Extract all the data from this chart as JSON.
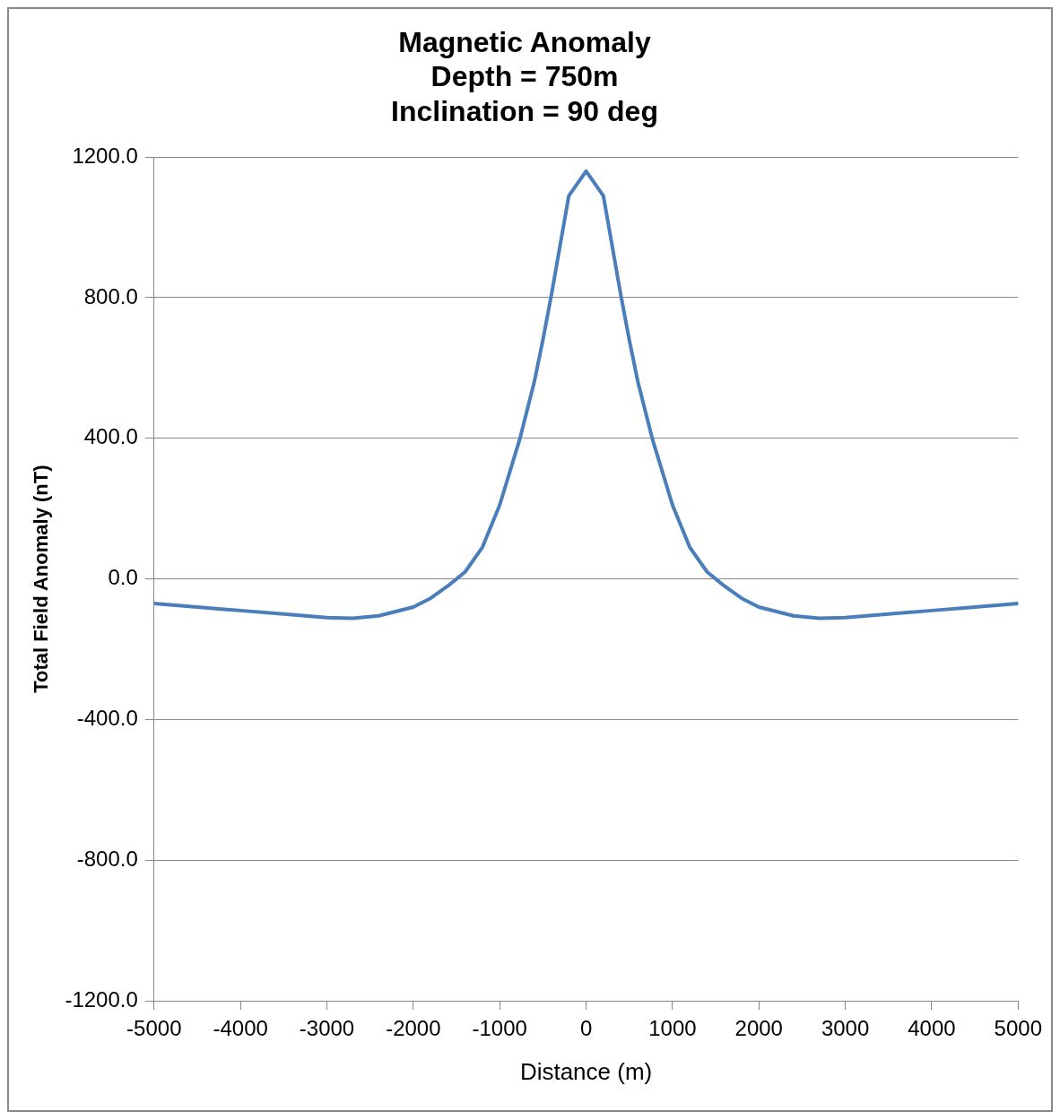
{
  "chart_data": {
    "type": "line",
    "title": [
      "Magnetic Anomaly",
      "Depth = 750m",
      "Inclination = 90 deg"
    ],
    "xlabel": "Distance (m)",
    "ylabel": "Total Field Anomaly (nT)",
    "x": [
      -5000,
      -4500,
      -4000,
      -3500,
      -3000,
      -2700,
      -2400,
      -2000,
      -1800,
      -1600,
      -1500,
      -1400,
      -1200,
      -1000,
      -765,
      -600,
      -500,
      -400,
      -200,
      0,
      200,
      400,
      500,
      600,
      765,
      1000,
      1200,
      1400,
      1500,
      1600,
      1800,
      2000,
      2400,
      2700,
      3000,
      3500,
      4000,
      4500,
      5000
    ],
    "series": [
      {
        "color": "#4a7ebb",
        "values": [
          -70,
          -80,
          -90,
          -100,
          -110,
          -112,
          -105,
          -80,
          -55,
          -20,
          0,
          20,
          90,
          210,
          400,
          560,
          680,
          810,
          1090,
          1160,
          1090,
          810,
          680,
          560,
          400,
          210,
          90,
          20,
          0,
          -20,
          -55,
          -80,
          -105,
          -112,
          -110,
          -100,
          -90,
          -80,
          -70
        ]
      }
    ],
    "xlim": [
      -5000,
      5000
    ],
    "xticks": [
      -5000,
      -4000,
      -3000,
      -2000,
      -1000,
      0,
      1000,
      2000,
      3000,
      4000,
      5000
    ],
    "ylim": [
      -1200,
      1200
    ],
    "yticks": [
      {
        "value": -1200,
        "label": "-1200.0"
      },
      {
        "value": -800,
        "label": "-800.0"
      },
      {
        "value": -400,
        "label": "-400.0"
      },
      {
        "value": 0,
        "label": "0.0"
      },
      {
        "value": 400,
        "label": "400.0"
      },
      {
        "value": 800,
        "label": "800.0"
      },
      {
        "value": 1200,
        "label": "1200.0"
      }
    ],
    "grid": "y",
    "legend": false,
    "marker": "none",
    "line_style": "solid"
  }
}
